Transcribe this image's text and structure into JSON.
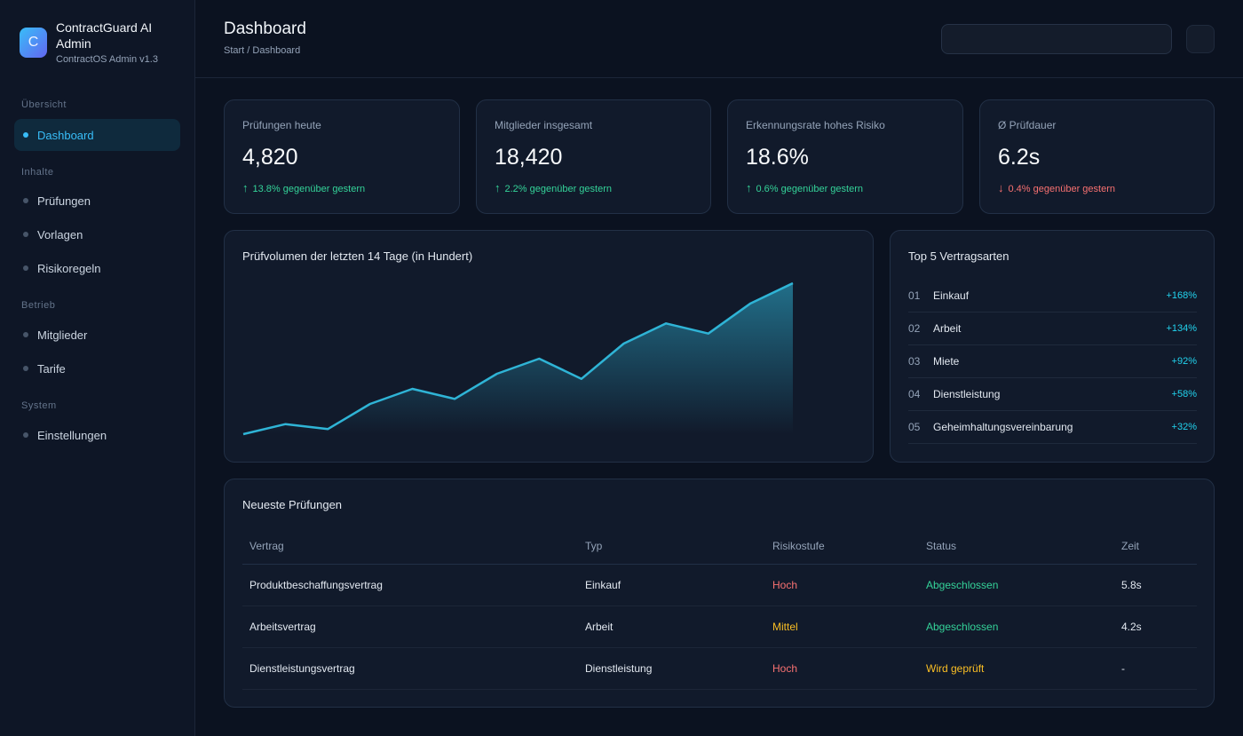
{
  "brand": {
    "logo_letter": "C",
    "name": "ContractGuard AI Admin",
    "subtitle": "ContractOS Admin v1.3"
  },
  "sidebar": {
    "sections": [
      {
        "label": "Übersicht",
        "items": [
          {
            "label": "Dashboard",
            "active": true
          }
        ]
      },
      {
        "label": "Inhalte",
        "items": [
          {
            "label": "Prüfungen"
          },
          {
            "label": "Vorlagen"
          },
          {
            "label": "Risikoregeln"
          }
        ]
      },
      {
        "label": "Betrieb",
        "items": [
          {
            "label": "Mitglieder"
          },
          {
            "label": "Tarife"
          }
        ]
      },
      {
        "label": "System",
        "items": [
          {
            "label": "Einstellungen"
          }
        ]
      }
    ]
  },
  "header": {
    "title": "Dashboard",
    "breadcrumb": "Start / Dashboard",
    "search_value": ""
  },
  "stats": [
    {
      "label": "Prüfungen heute",
      "value": "4,820",
      "delta": "13.8% gegenüber gestern",
      "direction": "up",
      "arrow": "↑"
    },
    {
      "label": "Mitglieder insgesamt",
      "value": "18,420",
      "delta": "2.2% gegenüber gestern",
      "direction": "up",
      "arrow": "↑"
    },
    {
      "label": "Erkennungsrate hohes Risiko",
      "value": "18.6%",
      "delta": "0.6% gegenüber gestern",
      "direction": "up",
      "arrow": "↑"
    },
    {
      "label": "Ø Prüfdauer",
      "value": "6.2s",
      "delta": "0.4% gegenüber gestern",
      "direction": "down",
      "arrow": "↓"
    }
  ],
  "chart_data": {
    "type": "area",
    "title": "Prüfvolumen der letzten 14 Tage (in Hundert)",
    "x": [
      1,
      2,
      3,
      4,
      5,
      6,
      7,
      8,
      9,
      10,
      11,
      12,
      13,
      14
    ],
    "values": [
      0,
      2,
      1,
      6,
      9,
      7,
      12,
      15,
      11,
      18,
      22,
      20,
      26,
      30
    ],
    "ylim": [
      0,
      30
    ],
    "grid": false,
    "line_color": "#2fb4d6"
  },
  "top_types": {
    "title": "Top 5 Vertragsarten",
    "items": [
      {
        "rank": "01",
        "name": "Einkauf",
        "value": "+168%"
      },
      {
        "rank": "02",
        "name": "Arbeit",
        "value": "+134%"
      },
      {
        "rank": "03",
        "name": "Miete",
        "value": "+92%"
      },
      {
        "rank": "04",
        "name": "Dienstleistung",
        "value": "+58%"
      },
      {
        "rank": "05",
        "name": "Geheimhaltungsvereinbarung",
        "value": "+32%"
      }
    ]
  },
  "recent": {
    "title": "Neueste Prüfungen",
    "columns": [
      "Vertrag",
      "Typ",
      "Risikostufe",
      "Status",
      "Zeit"
    ],
    "rows": [
      {
        "contract": "Produktbeschaffungsvertrag",
        "type": "Einkauf",
        "risk": "Hoch",
        "risk_level": "hoch",
        "status": "Abgeschlossen",
        "status_kind": "done",
        "time": "5.8s"
      },
      {
        "contract": "Arbeitsvertrag",
        "type": "Arbeit",
        "risk": "Mittel",
        "risk_level": "mittel",
        "status": "Abgeschlossen",
        "status_kind": "done",
        "time": "4.2s"
      },
      {
        "contract": "Dienstleistungsvertrag",
        "type": "Dienstleistung",
        "risk": "Hoch",
        "risk_level": "hoch",
        "status": "Wird geprüft",
        "status_kind": "check",
        "time": "-"
      }
    ]
  },
  "colors": {
    "accent": "#38bdf8",
    "up": "#34d399",
    "down": "#f87171",
    "warning": "#fbbf24"
  }
}
